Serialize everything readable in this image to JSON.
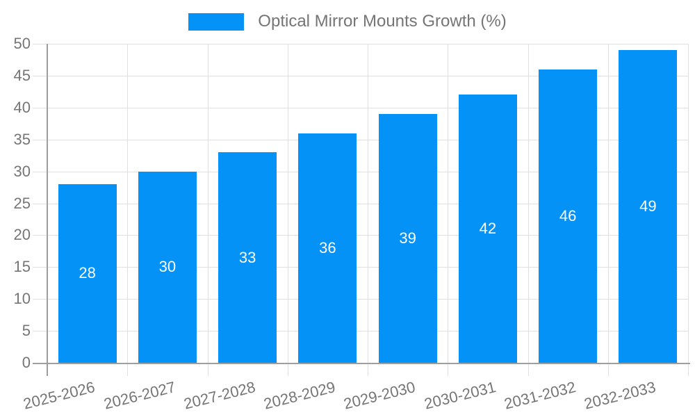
{
  "legend": {
    "label": "Optical Mirror Mounts Growth (%)"
  },
  "chart_data": {
    "type": "bar",
    "title": "Optical Mirror Mounts Growth (%)",
    "categories": [
      "2025-2026",
      "2026-2027",
      "2027-2028",
      "2028-2029",
      "2029-2030",
      "2030-2031",
      "2031-2032",
      "2032-2033"
    ],
    "values": [
      28,
      30,
      33,
      36,
      39,
      42,
      46,
      49
    ],
    "xlabel": "",
    "ylabel": "",
    "ylim": [
      0,
      50
    ],
    "ytick_step": 5,
    "ytick_labels": [
      "0",
      "5",
      "10",
      "15",
      "20",
      "25",
      "30",
      "35",
      "40",
      "45",
      "50"
    ],
    "grid": "on",
    "x_label_rotation_deg": -14,
    "legend_position": "top-center",
    "value_label_position": "inside-middle",
    "colors": {
      "bar": "#0592f7",
      "value_label": "#ffffff",
      "axis_text": "#757575",
      "legend_text": "#757575",
      "gridline": "#e0e0e0",
      "axis_line": "#9e9e9e",
      "background": "#ffffff"
    }
  }
}
